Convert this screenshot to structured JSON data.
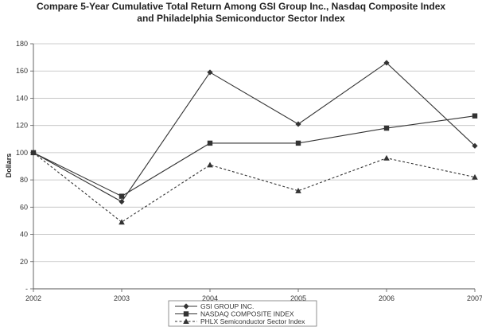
{
  "chart_data": {
    "type": "line",
    "title_line1": "Compare 5-Year Cumulative Total Return Among GSI Group Inc., Nasdaq Composite Index",
    "title_line2": "and Philadelphia Semiconductor Sector Index",
    "ylabel": "Dollars",
    "xlabel": "",
    "x": [
      "2002",
      "2003",
      "2004",
      "2005",
      "2006",
      "2007"
    ],
    "ylim": [
      0,
      180
    ],
    "yticks": [
      0,
      20,
      40,
      60,
      80,
      100,
      120,
      140,
      160,
      180
    ],
    "ytick_labels": [
      "-",
      "20",
      "40",
      "60",
      "80",
      "100",
      "120",
      "140",
      "160",
      "180"
    ],
    "grid": true,
    "legend": "bottom-center",
    "series": [
      {
        "name": "GSI GROUP INC.",
        "values": [
          100,
          64,
          159,
          121,
          166,
          105
        ],
        "marker": "diamond",
        "dash": "solid",
        "color": "#333333"
      },
      {
        "name": "NASDAQ COMPOSITE INDEX",
        "values": [
          100,
          68,
          107,
          107,
          118,
          127
        ],
        "marker": "square",
        "dash": "solid",
        "color": "#333333"
      },
      {
        "name": "PHLX Semiconductor Sector Index",
        "values": [
          100,
          49,
          91,
          72,
          96,
          82
        ],
        "marker": "triangle",
        "dash": "dashed",
        "color": "#333333"
      }
    ]
  }
}
